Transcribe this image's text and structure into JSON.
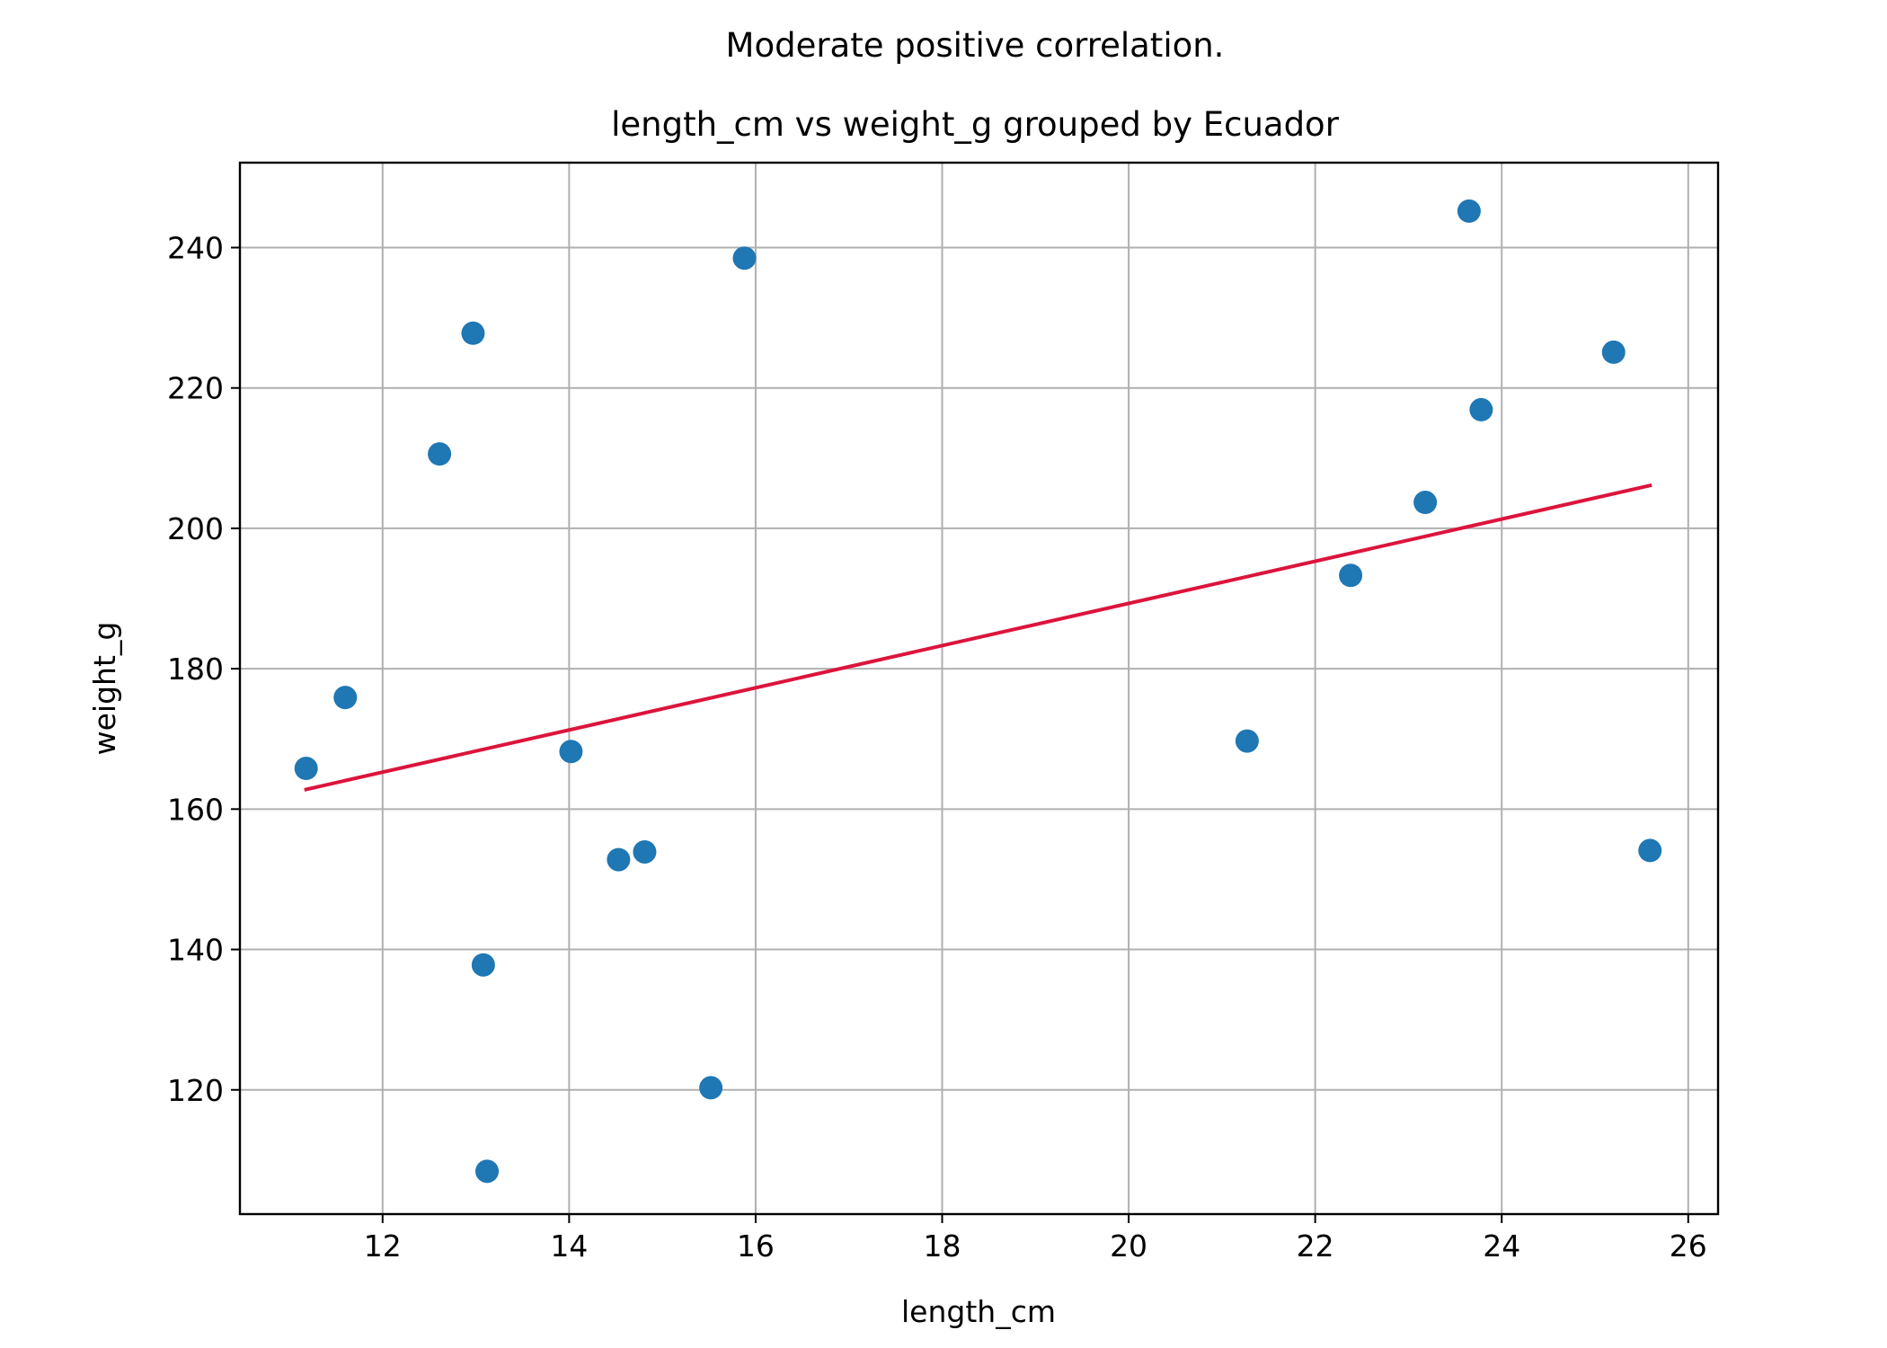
{
  "figure": {
    "suptitle": "Moderate positive correlation."
  },
  "chart_data": {
    "type": "scatter",
    "title": "length_cm vs weight_g grouped by Ecuador",
    "xlabel": "length_cm",
    "ylabel": "weight_g",
    "xlim": [
      10.47,
      26.32
    ],
    "ylim": [
      102.3,
      252.1
    ],
    "xticks": [
      12,
      14,
      16,
      18,
      20,
      22,
      24,
      26
    ],
    "yticks": [
      120,
      140,
      160,
      180,
      200,
      220,
      240
    ],
    "grid": true,
    "point_color": "#1f77b4",
    "trend_color": "#dc143c",
    "points": [
      {
        "x": 11.18,
        "y": 165.8
      },
      {
        "x": 11.6,
        "y": 175.9
      },
      {
        "x": 12.61,
        "y": 210.6
      },
      {
        "x": 12.97,
        "y": 227.8
      },
      {
        "x": 13.08,
        "y": 137.8
      },
      {
        "x": 13.12,
        "y": 108.4
      },
      {
        "x": 14.02,
        "y": 168.2
      },
      {
        "x": 14.53,
        "y": 152.8
      },
      {
        "x": 14.81,
        "y": 153.9
      },
      {
        "x": 15.52,
        "y": 120.3
      },
      {
        "x": 15.88,
        "y": 238.5
      },
      {
        "x": 21.27,
        "y": 169.7
      },
      {
        "x": 22.38,
        "y": 193.3
      },
      {
        "x": 23.18,
        "y": 203.7
      },
      {
        "x": 23.65,
        "y": 245.2
      },
      {
        "x": 23.78,
        "y": 216.9
      },
      {
        "x": 25.2,
        "y": 225.1
      },
      {
        "x": 25.59,
        "y": 154.1
      }
    ],
    "trend_line": {
      "x": [
        11.18,
        25.59
      ],
      "y": [
        162.8,
        206.1
      ]
    }
  }
}
